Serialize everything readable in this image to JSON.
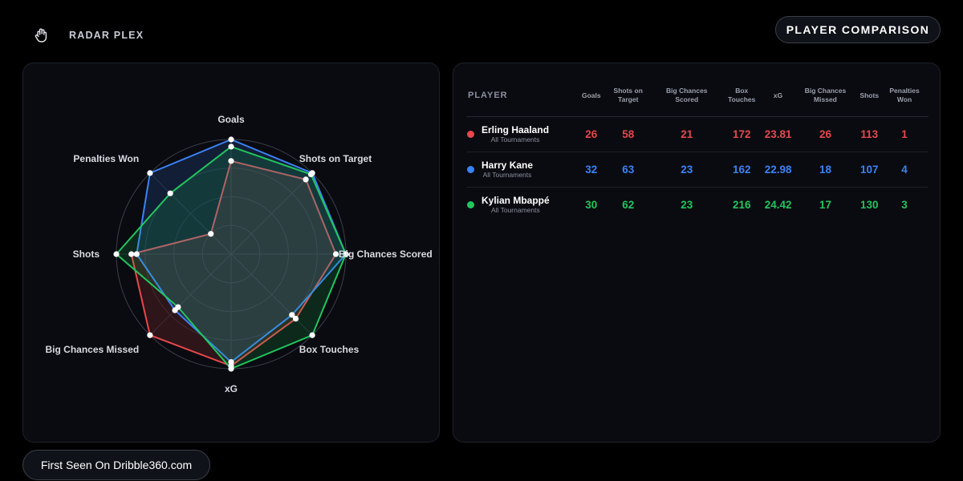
{
  "brand": {
    "name": "RADAR PLEX",
    "icon": "hand-icon"
  },
  "header": {
    "title": "PLAYER COMPARISON"
  },
  "footer": {
    "label": "First Seen On Dribble360.com"
  },
  "colors": {
    "background": "#000000",
    "card": "#0a0b10",
    "haaland": "#e5484d",
    "kane": "#3b82f6",
    "mbappe": "#22c55e"
  },
  "table": {
    "headers": [
      "PLAYER",
      "Goals",
      "Shots on Target",
      "Big Chances Scored",
      "Box Touches",
      "xG",
      "Big Chances Missed",
      "Shots",
      "Penalties Won"
    ],
    "rows": [
      {
        "name": "Erling Haaland",
        "sub": "All Tournaments",
        "color": "#e5484d",
        "values": [
          "26",
          "58",
          "21",
          "172",
          "23.81",
          "26",
          "113",
          "1"
        ]
      },
      {
        "name": "Harry Kane",
        "sub": "All Tournaments",
        "color": "#3b82f6",
        "values": [
          "32",
          "63",
          "23",
          "162",
          "22.98",
          "18",
          "107",
          "4"
        ]
      },
      {
        "name": "Kylian Mbappé",
        "sub": "All Tournaments",
        "color": "#22c55e",
        "values": [
          "30",
          "62",
          "23",
          "216",
          "24.42",
          "17",
          "130",
          "3"
        ]
      }
    ]
  },
  "chart_data": {
    "type": "radar",
    "axes": [
      "Goals",
      "Shots on Target",
      "Big Chances Scored",
      "Box Touches",
      "xG",
      "Big Chances Missed",
      "Shots",
      "Penalties Won"
    ],
    "series": [
      {
        "name": "Erling Haaland",
        "color": "#e5484d",
        "values": [
          26,
          58,
          21,
          172,
          23.81,
          26,
          113,
          1
        ]
      },
      {
        "name": "Harry Kane",
        "color": "#3b82f6",
        "values": [
          32,
          63,
          23,
          162,
          22.98,
          18,
          107,
          4
        ]
      },
      {
        "name": "Kylian Mbappé",
        "color": "#22c55e",
        "values": [
          30,
          62,
          23,
          216,
          24.42,
          17,
          130,
          3
        ]
      }
    ],
    "grid_rings": 4,
    "grid": true
  }
}
